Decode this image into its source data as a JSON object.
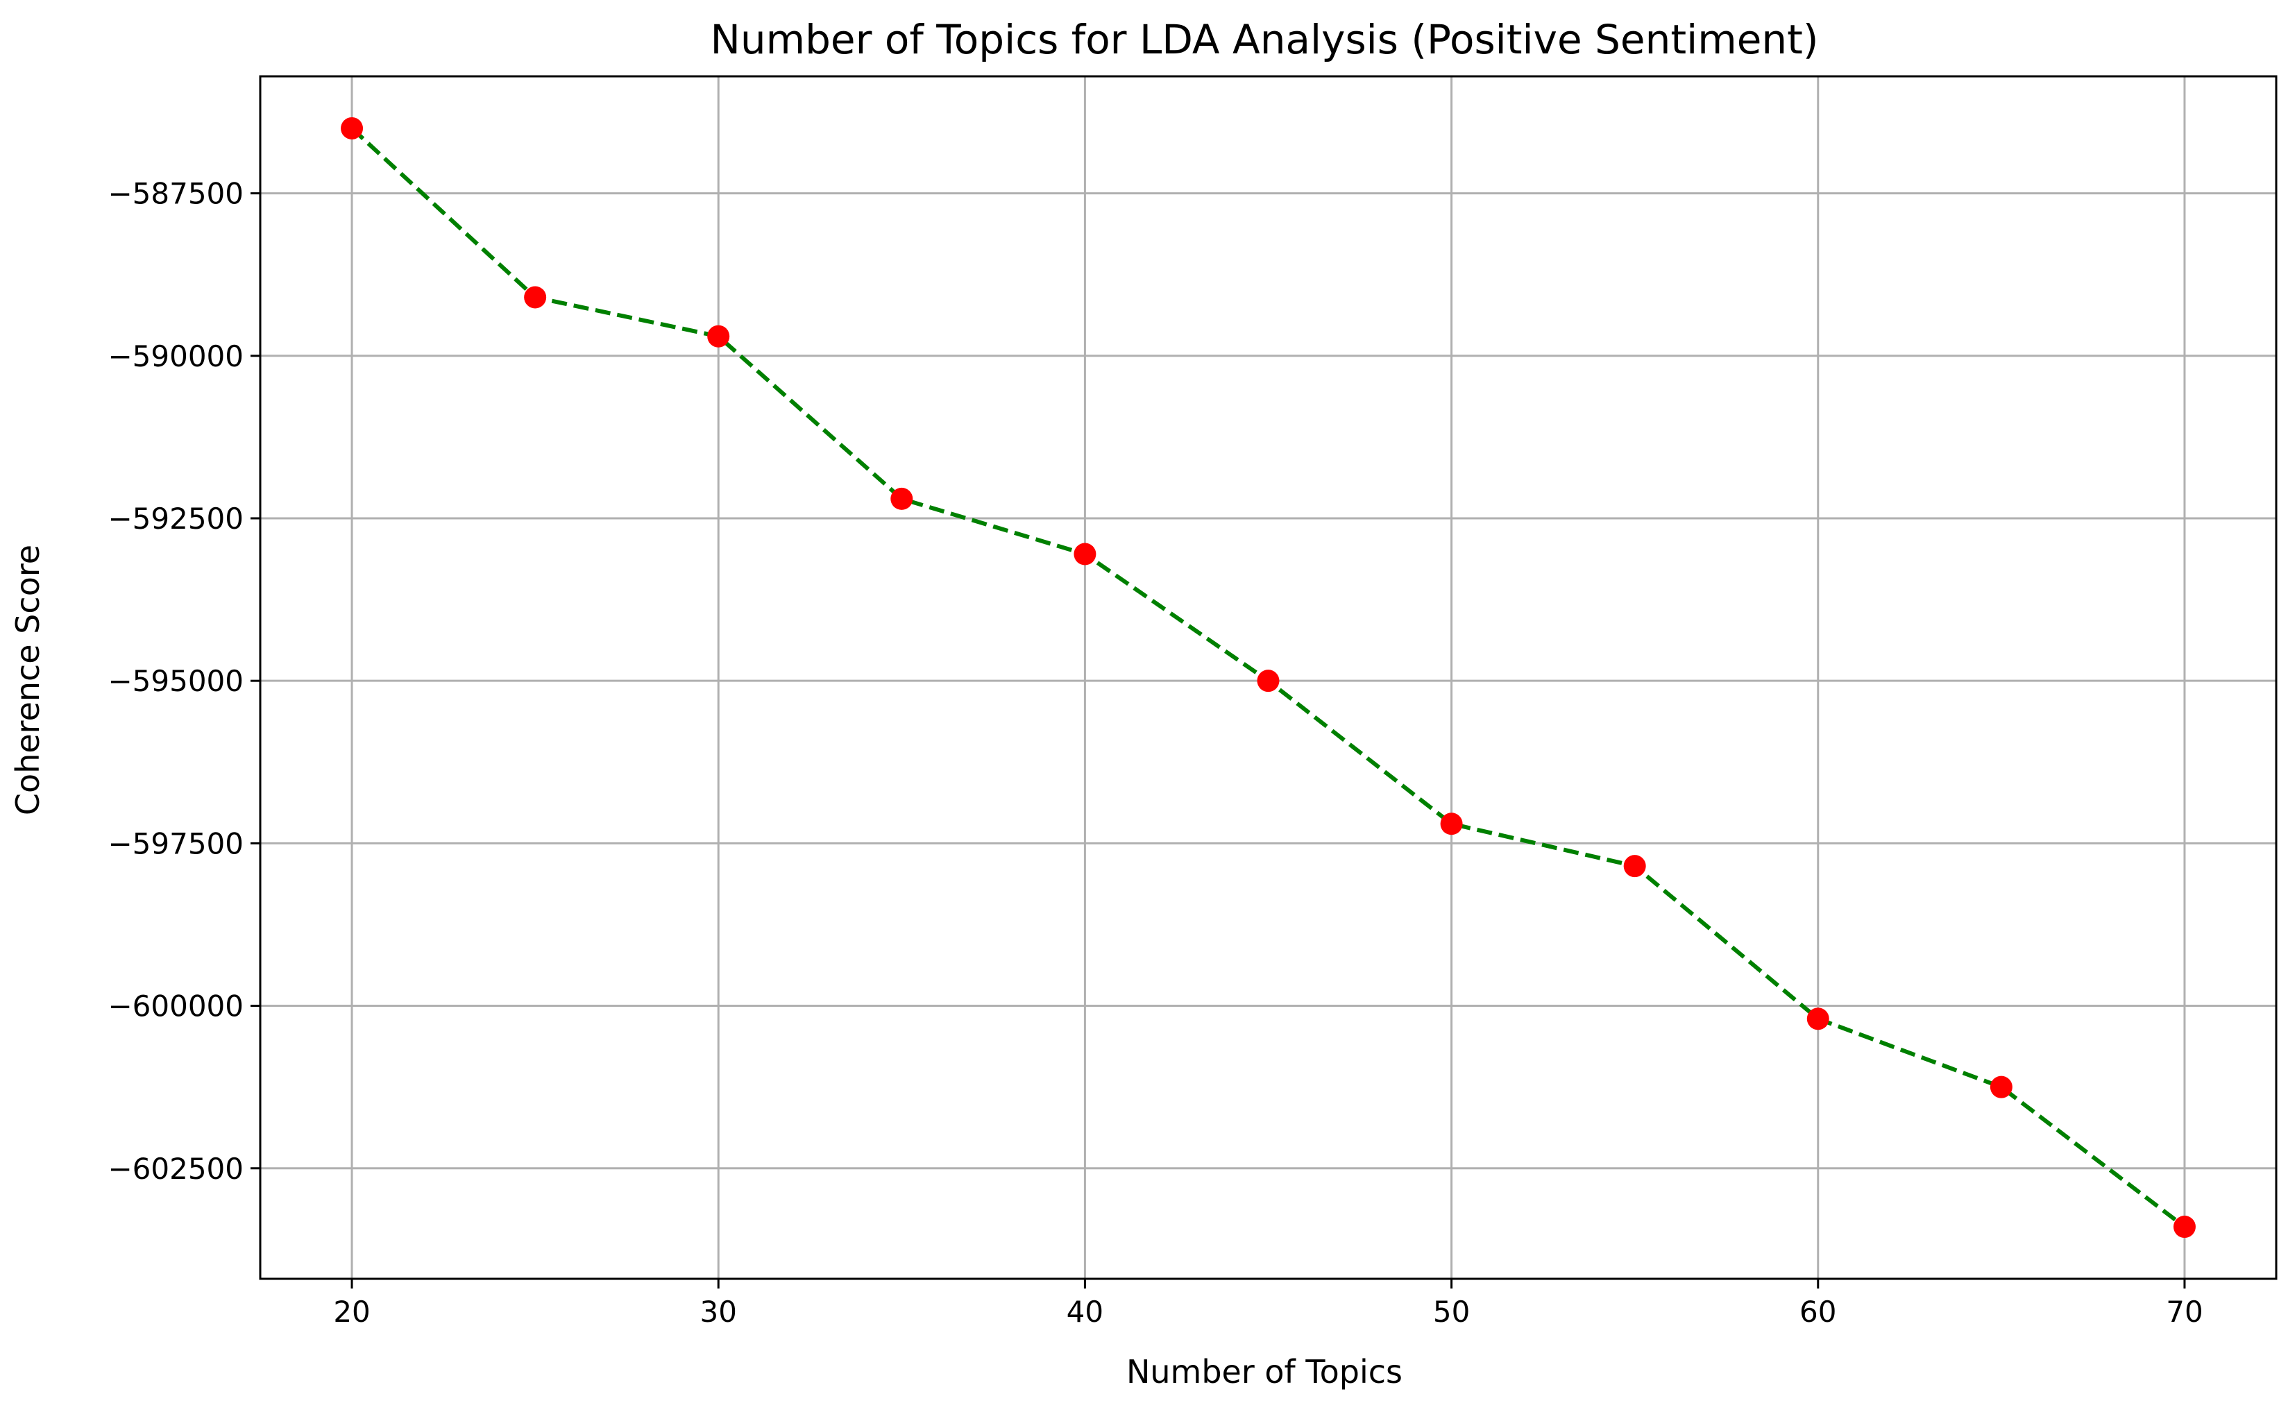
{
  "chart_data": {
    "type": "line",
    "title": "Number of Topics for LDA Analysis (Positive Sentiment)",
    "xlabel": "Number of Topics",
    "ylabel": "Coherence Score",
    "x": [
      20,
      25,
      30,
      35,
      40,
      45,
      50,
      55,
      60,
      65,
      70
    ],
    "series": [
      {
        "values": [
          -586500,
          -589100,
          -589700,
          -592200,
          -593050,
          -595000,
          -597200,
          -597850,
          -600200,
          -601250,
          -603400
        ],
        "line_color": "#008000",
        "line_style": "dashed",
        "marker": "circle",
        "marker_color": "#ff0000"
      }
    ],
    "xlim": [
      17.5,
      72.5
    ],
    "ylim": [
      -604200,
      -585700
    ],
    "xticks": [
      20,
      30,
      40,
      50,
      60,
      70
    ],
    "xtick_labels": [
      "20",
      "30",
      "40",
      "50",
      "60",
      "70"
    ],
    "yticks": [
      -587500,
      -590000,
      -592500,
      -595000,
      -597500,
      -600000,
      -602500
    ],
    "ytick_labels": [
      "−587500",
      "−590000",
      "−592500",
      "−595000",
      "−597500",
      "−600000",
      "−602500"
    ],
    "grid": true
  }
}
